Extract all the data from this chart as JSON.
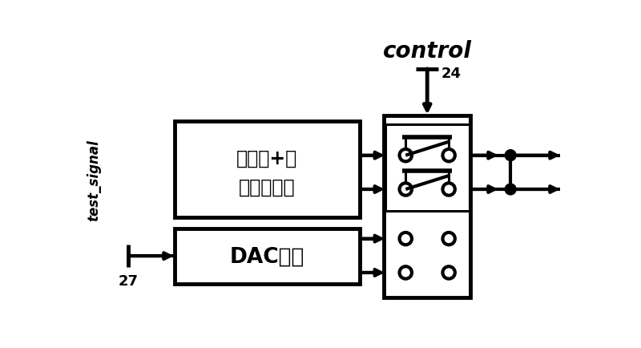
{
  "bg_color": "#ffffff",
  "line_color": "#000000",
  "title": "control",
  "label_test_signal": "test_signal",
  "label_27": "27",
  "label_24": "24",
  "label_box1_line1": "传感器+前",
  "label_box1_line2": "置放大电路",
  "label_box2": "DAC电路",
  "lw": 2.2,
  "lw_thick": 3.0
}
